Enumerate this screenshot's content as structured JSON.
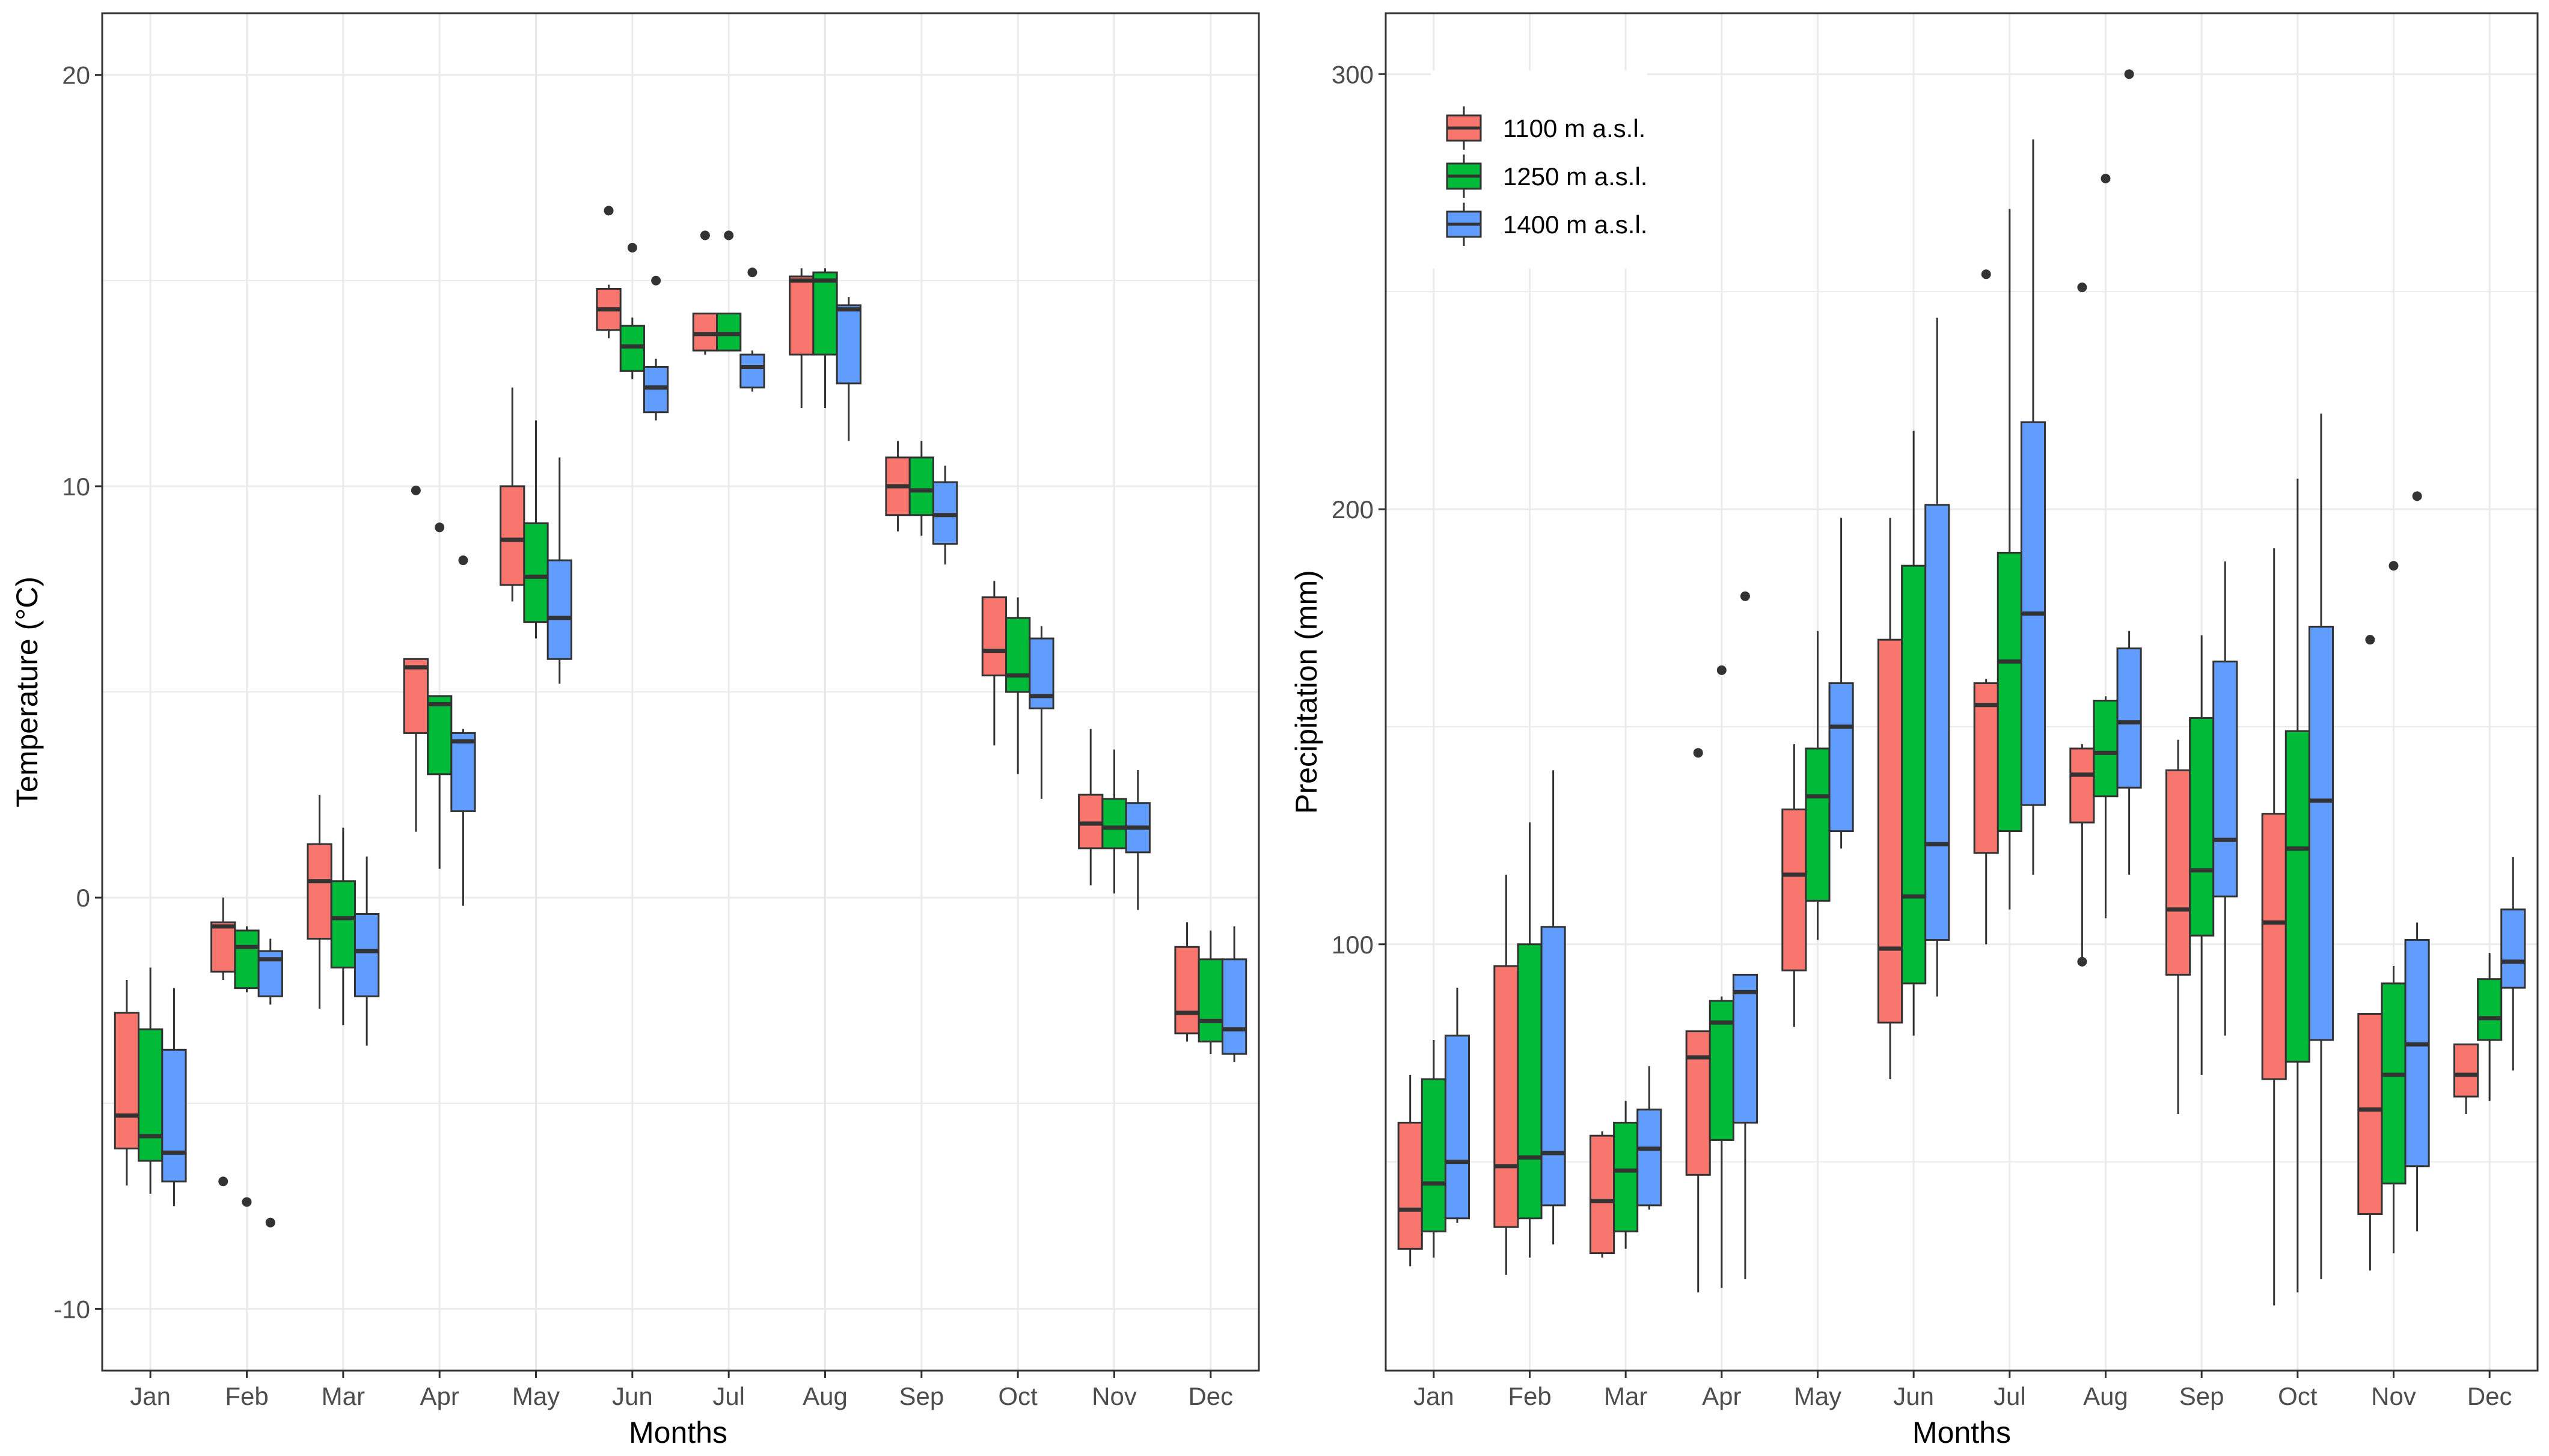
{
  "chart_data": [
    {
      "type": "boxplot",
      "xlabel": "Months",
      "ylabel": "Temperature (°C)",
      "ylim": [
        -11.5,
        21.5
      ],
      "yticks": [
        -10,
        0,
        10,
        20
      ],
      "categories": [
        "Jan",
        "Feb",
        "Mar",
        "Apr",
        "May",
        "Jun",
        "Jul",
        "Aug",
        "Sep",
        "Oct",
        "Nov",
        "Dec"
      ],
      "series": [
        {
          "name": "1100 m a.s.l.",
          "color": "#F8766D",
          "boxes": [
            {
              "min": -7.0,
              "q1": -6.1,
              "median": -5.3,
              "q3": -2.8,
              "max": -2.0,
              "outliers": []
            },
            {
              "min": -2.0,
              "q1": -1.8,
              "median": -0.7,
              "q3": -0.6,
              "max": 0.0,
              "outliers": [
                -6.9
              ]
            },
            {
              "min": -2.7,
              "q1": -1.0,
              "median": 0.4,
              "q3": 1.3,
              "max": 2.5,
              "outliers": []
            },
            {
              "min": 1.6,
              "q1": 4.0,
              "median": 5.6,
              "q3": 5.8,
              "max": 5.8,
              "outliers": [
                9.9
              ]
            },
            {
              "min": 7.2,
              "q1": 7.6,
              "median": 8.7,
              "q3": 10.0,
              "max": 12.4,
              "outliers": []
            },
            {
              "min": 13.6,
              "q1": 13.8,
              "median": 14.3,
              "q3": 14.8,
              "max": 14.9,
              "outliers": [
                16.7
              ]
            },
            {
              "min": 13.2,
              "q1": 13.3,
              "median": 13.7,
              "q3": 14.2,
              "max": 14.2,
              "outliers": [
                16.1
              ]
            },
            {
              "min": 11.9,
              "q1": 13.2,
              "median": 15.0,
              "q3": 15.1,
              "max": 15.3,
              "outliers": []
            },
            {
              "min": 8.9,
              "q1": 9.3,
              "median": 10.0,
              "q3": 10.7,
              "max": 11.1,
              "outliers": []
            },
            {
              "min": 3.7,
              "q1": 5.4,
              "median": 6.0,
              "q3": 7.3,
              "max": 7.7,
              "outliers": []
            },
            {
              "min": 0.3,
              "q1": 1.2,
              "median": 1.8,
              "q3": 2.5,
              "max": 4.1,
              "outliers": []
            },
            {
              "min": -3.5,
              "q1": -3.3,
              "median": -2.8,
              "q3": -1.2,
              "max": -0.6,
              "outliers": []
            }
          ]
        },
        {
          "name": "1250 m a.s.l.",
          "color": "#00BA38",
          "boxes": [
            {
              "min": -7.2,
              "q1": -6.4,
              "median": -5.8,
              "q3": -3.2,
              "max": -1.7,
              "outliers": []
            },
            {
              "min": -2.3,
              "q1": -2.2,
              "median": -1.2,
              "q3": -0.8,
              "max": -0.7,
              "outliers": [
                -7.4
              ]
            },
            {
              "min": -3.1,
              "q1": -1.7,
              "median": -0.5,
              "q3": 0.4,
              "max": 1.7,
              "outliers": []
            },
            {
              "min": 0.7,
              "q1": 3.0,
              "median": 4.7,
              "q3": 4.9,
              "max": 4.9,
              "outliers": [
                9.0
              ]
            },
            {
              "min": 6.3,
              "q1": 6.7,
              "median": 7.8,
              "q3": 9.1,
              "max": 11.6,
              "outliers": []
            },
            {
              "min": 12.6,
              "q1": 12.8,
              "median": 13.4,
              "q3": 13.9,
              "max": 14.1,
              "outliers": [
                15.8
              ]
            },
            {
              "min": 13.3,
              "q1": 13.3,
              "median": 13.7,
              "q3": 14.2,
              "max": 14.2,
              "outliers": [
                16.1
              ]
            },
            {
              "min": 11.9,
              "q1": 13.2,
              "median": 15.0,
              "q3": 15.2,
              "max": 15.3,
              "outliers": []
            },
            {
              "min": 8.8,
              "q1": 9.3,
              "median": 9.9,
              "q3": 10.7,
              "max": 11.1,
              "outliers": []
            },
            {
              "min": 3.0,
              "q1": 5.0,
              "median": 5.4,
              "q3": 6.8,
              "max": 7.3,
              "outliers": []
            },
            {
              "min": 0.1,
              "q1": 1.2,
              "median": 1.7,
              "q3": 2.4,
              "max": 3.6,
              "outliers": []
            },
            {
              "min": -3.8,
              "q1": -3.5,
              "median": -3.0,
              "q3": -1.5,
              "max": -0.8,
              "outliers": []
            }
          ]
        },
        {
          "name": "1400 m a.s.l.",
          "color": "#619CFF",
          "boxes": [
            {
              "min": -7.5,
              "q1": -6.9,
              "median": -6.2,
              "q3": -3.7,
              "max": -2.2,
              "outliers": []
            },
            {
              "min": -2.6,
              "q1": -2.4,
              "median": -1.5,
              "q3": -1.3,
              "max": -1.0,
              "outliers": [
                -7.9
              ]
            },
            {
              "min": -3.6,
              "q1": -2.4,
              "median": -1.3,
              "q3": -0.4,
              "max": 1.0,
              "outliers": []
            },
            {
              "min": -0.2,
              "q1": 2.1,
              "median": 3.8,
              "q3": 4.0,
              "max": 4.1,
              "outliers": [
                8.2
              ]
            },
            {
              "min": 5.2,
              "q1": 5.8,
              "median": 6.8,
              "q3": 8.2,
              "max": 10.7,
              "outliers": []
            },
            {
              "min": 11.6,
              "q1": 11.8,
              "median": 12.4,
              "q3": 12.9,
              "max": 13.1,
              "outliers": [
                15.0
              ]
            },
            {
              "min": 12.3,
              "q1": 12.4,
              "median": 12.9,
              "q3": 13.2,
              "max": 13.3,
              "outliers": [
                15.2
              ]
            },
            {
              "min": 11.1,
              "q1": 12.5,
              "median": 14.3,
              "q3": 14.4,
              "max": 14.6,
              "outliers": []
            },
            {
              "min": 8.1,
              "q1": 8.6,
              "median": 9.3,
              "q3": 10.1,
              "max": 10.5,
              "outliers": []
            },
            {
              "min": 2.4,
              "q1": 4.6,
              "median": 4.9,
              "q3": 6.3,
              "max": 6.6,
              "outliers": []
            },
            {
              "min": -0.3,
              "q1": 1.1,
              "median": 1.7,
              "q3": 2.3,
              "max": 3.1,
              "outliers": []
            },
            {
              "min": -4.0,
              "q1": -3.8,
              "median": -3.2,
              "q3": -1.5,
              "max": -0.7,
              "outliers": []
            }
          ]
        }
      ]
    },
    {
      "type": "boxplot",
      "xlabel": "Months",
      "ylabel": "Precipitation (mm)",
      "ylim": [
        2,
        314
      ],
      "yticks": [
        100,
        200,
        300
      ],
      "categories": [
        "Jan",
        "Feb",
        "Mar",
        "Apr",
        "May",
        "Jun",
        "Jul",
        "Aug",
        "Sep",
        "Oct",
        "Nov",
        "Dec"
      ],
      "legend": {
        "position": "top-left",
        "entries": [
          "1100 m a.s.l.",
          "1250 m a.s.l.",
          "1400 m a.s.l."
        ]
      },
      "series": [
        {
          "name": "1100 m a.s.l.",
          "color": "#F8766D",
          "boxes": [
            {
              "min": 26,
              "q1": 30,
              "median": 39,
              "q3": 59,
              "max": 70,
              "outliers": []
            },
            {
              "min": 24,
              "q1": 35,
              "median": 49,
              "q3": 95,
              "max": 116,
              "outliers": []
            },
            {
              "min": 28,
              "q1": 29,
              "median": 41,
              "q3": 56,
              "max": 57,
              "outliers": []
            },
            {
              "min": 20,
              "q1": 47,
              "median": 74,
              "q3": 80,
              "max": 80,
              "outliers": [
                144
              ]
            },
            {
              "min": 81,
              "q1": 94,
              "median": 116,
              "q3": 131,
              "max": 146,
              "outliers": []
            },
            {
              "min": 69,
              "q1": 82,
              "median": 99,
              "q3": 170,
              "max": 198,
              "outliers": []
            },
            {
              "min": 100,
              "q1": 121,
              "median": 155,
              "q3": 160,
              "max": 161,
              "outliers": [
                254
              ]
            },
            {
              "min": 97,
              "q1": 128,
              "median": 139,
              "q3": 145,
              "max": 146,
              "outliers": [
                251,
                96
              ]
            },
            {
              "min": 61,
              "q1": 93,
              "median": 108,
              "q3": 140,
              "max": 147,
              "outliers": []
            },
            {
              "min": 17,
              "q1": 69,
              "median": 105,
              "q3": 130,
              "max": 191,
              "outliers": []
            },
            {
              "min": 25,
              "q1": 38,
              "median": 62,
              "q3": 84,
              "max": 84,
              "outliers": [
                170
              ]
            },
            {
              "min": 61,
              "q1": 65,
              "median": 70,
              "q3": 77,
              "max": 77,
              "outliers": []
            }
          ]
        },
        {
          "name": "1250 m a.s.l.",
          "color": "#00BA38",
          "boxes": [
            {
              "min": 28,
              "q1": 34,
              "median": 45,
              "q3": 69,
              "max": 78,
              "outliers": []
            },
            {
              "min": 28,
              "q1": 37,
              "median": 51,
              "q3": 100,
              "max": 128,
              "outliers": []
            },
            {
              "min": 30,
              "q1": 34,
              "median": 48,
              "q3": 59,
              "max": 64,
              "outliers": []
            },
            {
              "min": 21,
              "q1": 55,
              "median": 82,
              "q3": 87,
              "max": 88,
              "outliers": [
                163
              ]
            },
            {
              "min": 101,
              "q1": 110,
              "median": 134,
              "q3": 145,
              "max": 172,
              "outliers": []
            },
            {
              "min": 79,
              "q1": 91,
              "median": 111,
              "q3": 187,
              "max": 218,
              "outliers": []
            },
            {
              "min": 108,
              "q1": 126,
              "median": 165,
              "q3": 190,
              "max": 269,
              "outliers": []
            },
            {
              "min": 106,
              "q1": 134,
              "median": 144,
              "q3": 156,
              "max": 157,
              "outliers": [
                276
              ]
            },
            {
              "min": 70,
              "q1": 102,
              "median": 117,
              "q3": 152,
              "max": 171,
              "outliers": []
            },
            {
              "min": 20,
              "q1": 73,
              "median": 122,
              "q3": 149,
              "max": 207,
              "outliers": []
            },
            {
              "min": 29,
              "q1": 45,
              "median": 70,
              "q3": 91,
              "max": 95,
              "outliers": [
                187
              ]
            },
            {
              "min": 64,
              "q1": 78,
              "median": 83,
              "q3": 92,
              "max": 98,
              "outliers": []
            }
          ]
        },
        {
          "name": "1400 m a.s.l.",
          "color": "#619CFF",
          "boxes": [
            {
              "min": 36,
              "q1": 37,
              "median": 50,
              "q3": 79,
              "max": 90,
              "outliers": []
            },
            {
              "min": 31,
              "q1": 40,
              "median": 52,
              "q3": 104,
              "max": 140,
              "outliers": []
            },
            {
              "min": 39,
              "q1": 40,
              "median": 53,
              "q3": 62,
              "max": 72,
              "outliers": []
            },
            {
              "min": 23,
              "q1": 59,
              "median": 89,
              "q3": 93,
              "max": 93,
              "outliers": [
                180
              ]
            },
            {
              "min": 122,
              "q1": 126,
              "median": 150,
              "q3": 160,
              "max": 198,
              "outliers": []
            },
            {
              "min": 88,
              "q1": 101,
              "median": 123,
              "q3": 201,
              "max": 244,
              "outliers": []
            },
            {
              "min": 116,
              "q1": 132,
              "median": 176,
              "q3": 220,
              "max": 285,
              "outliers": []
            },
            {
              "min": 116,
              "q1": 136,
              "median": 151,
              "q3": 168,
              "max": 172,
              "outliers": [
                300
              ]
            },
            {
              "min": 79,
              "q1": 111,
              "median": 124,
              "q3": 165,
              "max": 188,
              "outliers": []
            },
            {
              "min": 23,
              "q1": 78,
              "median": 133,
              "q3": 173,
              "max": 222,
              "outliers": []
            },
            {
              "min": 34,
              "q1": 49,
              "median": 77,
              "q3": 101,
              "max": 105,
              "outliers": [
                203
              ]
            },
            {
              "min": 71,
              "q1": 90,
              "median": 96,
              "q3": 108,
              "max": 120,
              "outliers": []
            }
          ]
        }
      ]
    }
  ]
}
